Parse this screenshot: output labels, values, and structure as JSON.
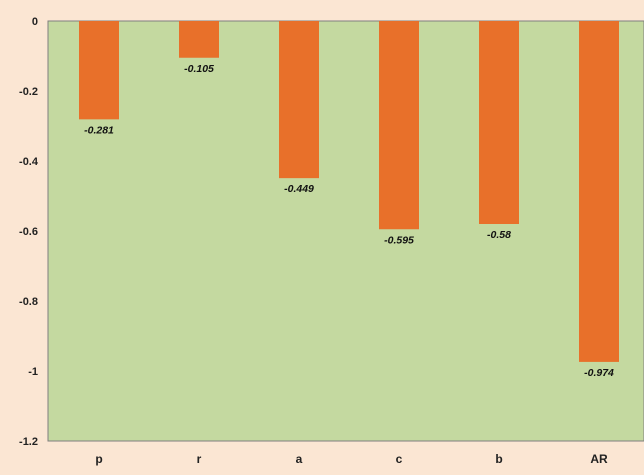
{
  "chart_data": {
    "type": "bar",
    "categories": [
      "p",
      "r",
      "a",
      "c",
      "b",
      "AR"
    ],
    "values": [
      -0.281,
      -0.105,
      -0.449,
      -0.595,
      -0.58,
      -0.974
    ],
    "data_labels": [
      "-0.281",
      "-0.105",
      "-0.449",
      "-0.595",
      "-0.58",
      "-0.974"
    ],
    "y_ticks": [
      0,
      -0.2,
      -0.4,
      -0.6,
      -0.8,
      -1,
      -1.2
    ],
    "y_tick_labels": [
      "0",
      "-0.2",
      "-0.4",
      "-0.6",
      "-0.8",
      "-1",
      "-1.2"
    ],
    "ylim": [
      -1.2,
      0
    ],
    "title": "",
    "xlabel": "",
    "ylabel": "",
    "grid": false,
    "legend": "none",
    "colors": {
      "background": "#fbe6d3",
      "plot_area": "#c4d9a0",
      "bar": "#e8702a",
      "axis": "#7f7f7f"
    }
  }
}
